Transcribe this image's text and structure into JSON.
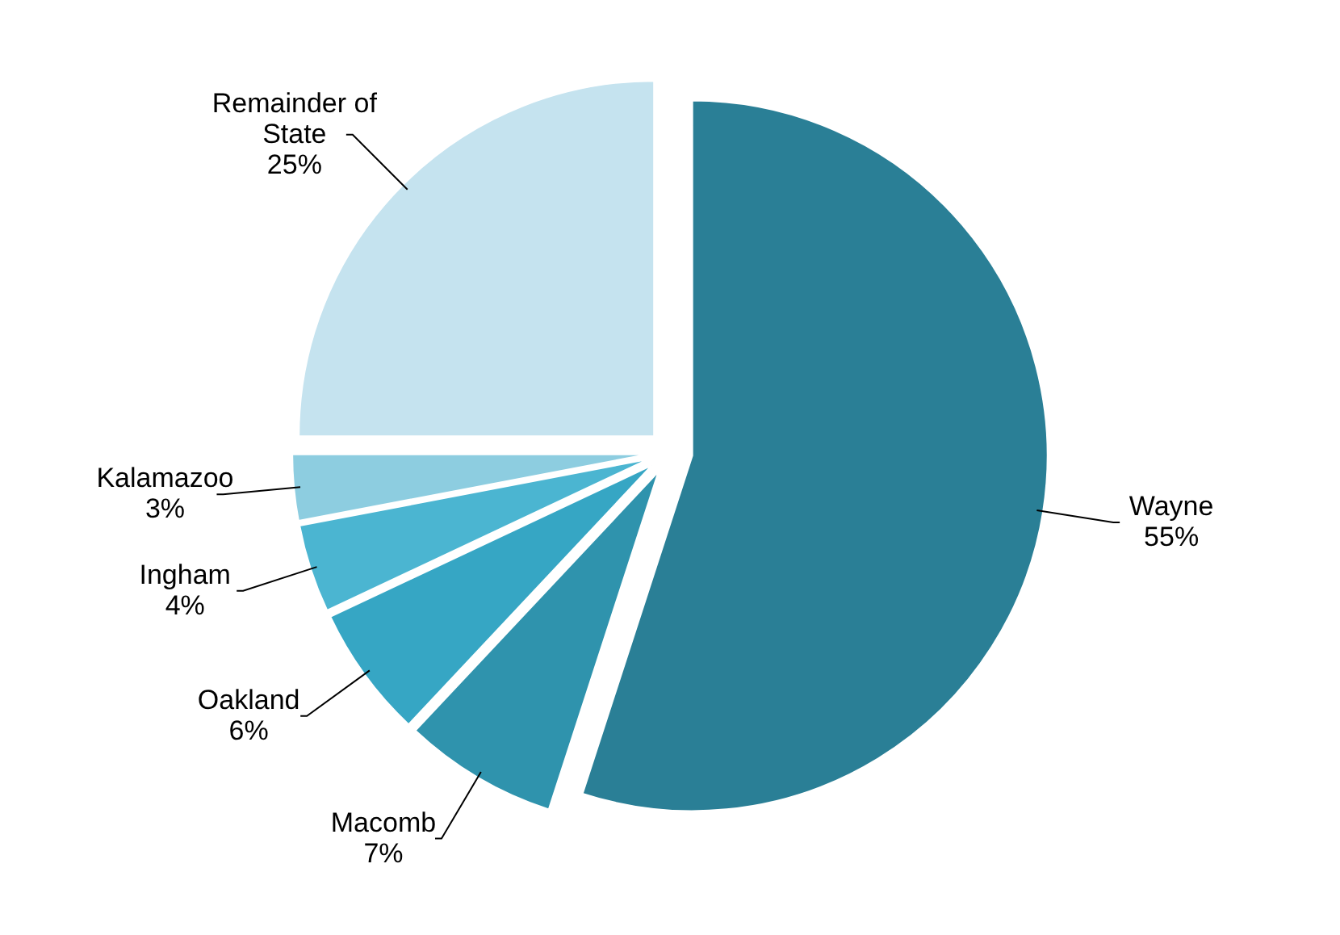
{
  "chart_data": {
    "type": "pie",
    "categories": [
      "Wayne",
      "Macomb",
      "Oakland",
      "Ingham",
      "Kalamazoo",
      "Remainder of State"
    ],
    "values": [
      55,
      7,
      6,
      4,
      3,
      25
    ],
    "colors": [
      "#2a7f96",
      "#2f93ad",
      "#36a6c4",
      "#4bb5d1",
      "#8dcde0",
      "#c5e3ef"
    ],
    "value_labels": [
      "55%",
      "7%",
      "6%",
      "4%",
      "3%",
      "25%"
    ]
  }
}
